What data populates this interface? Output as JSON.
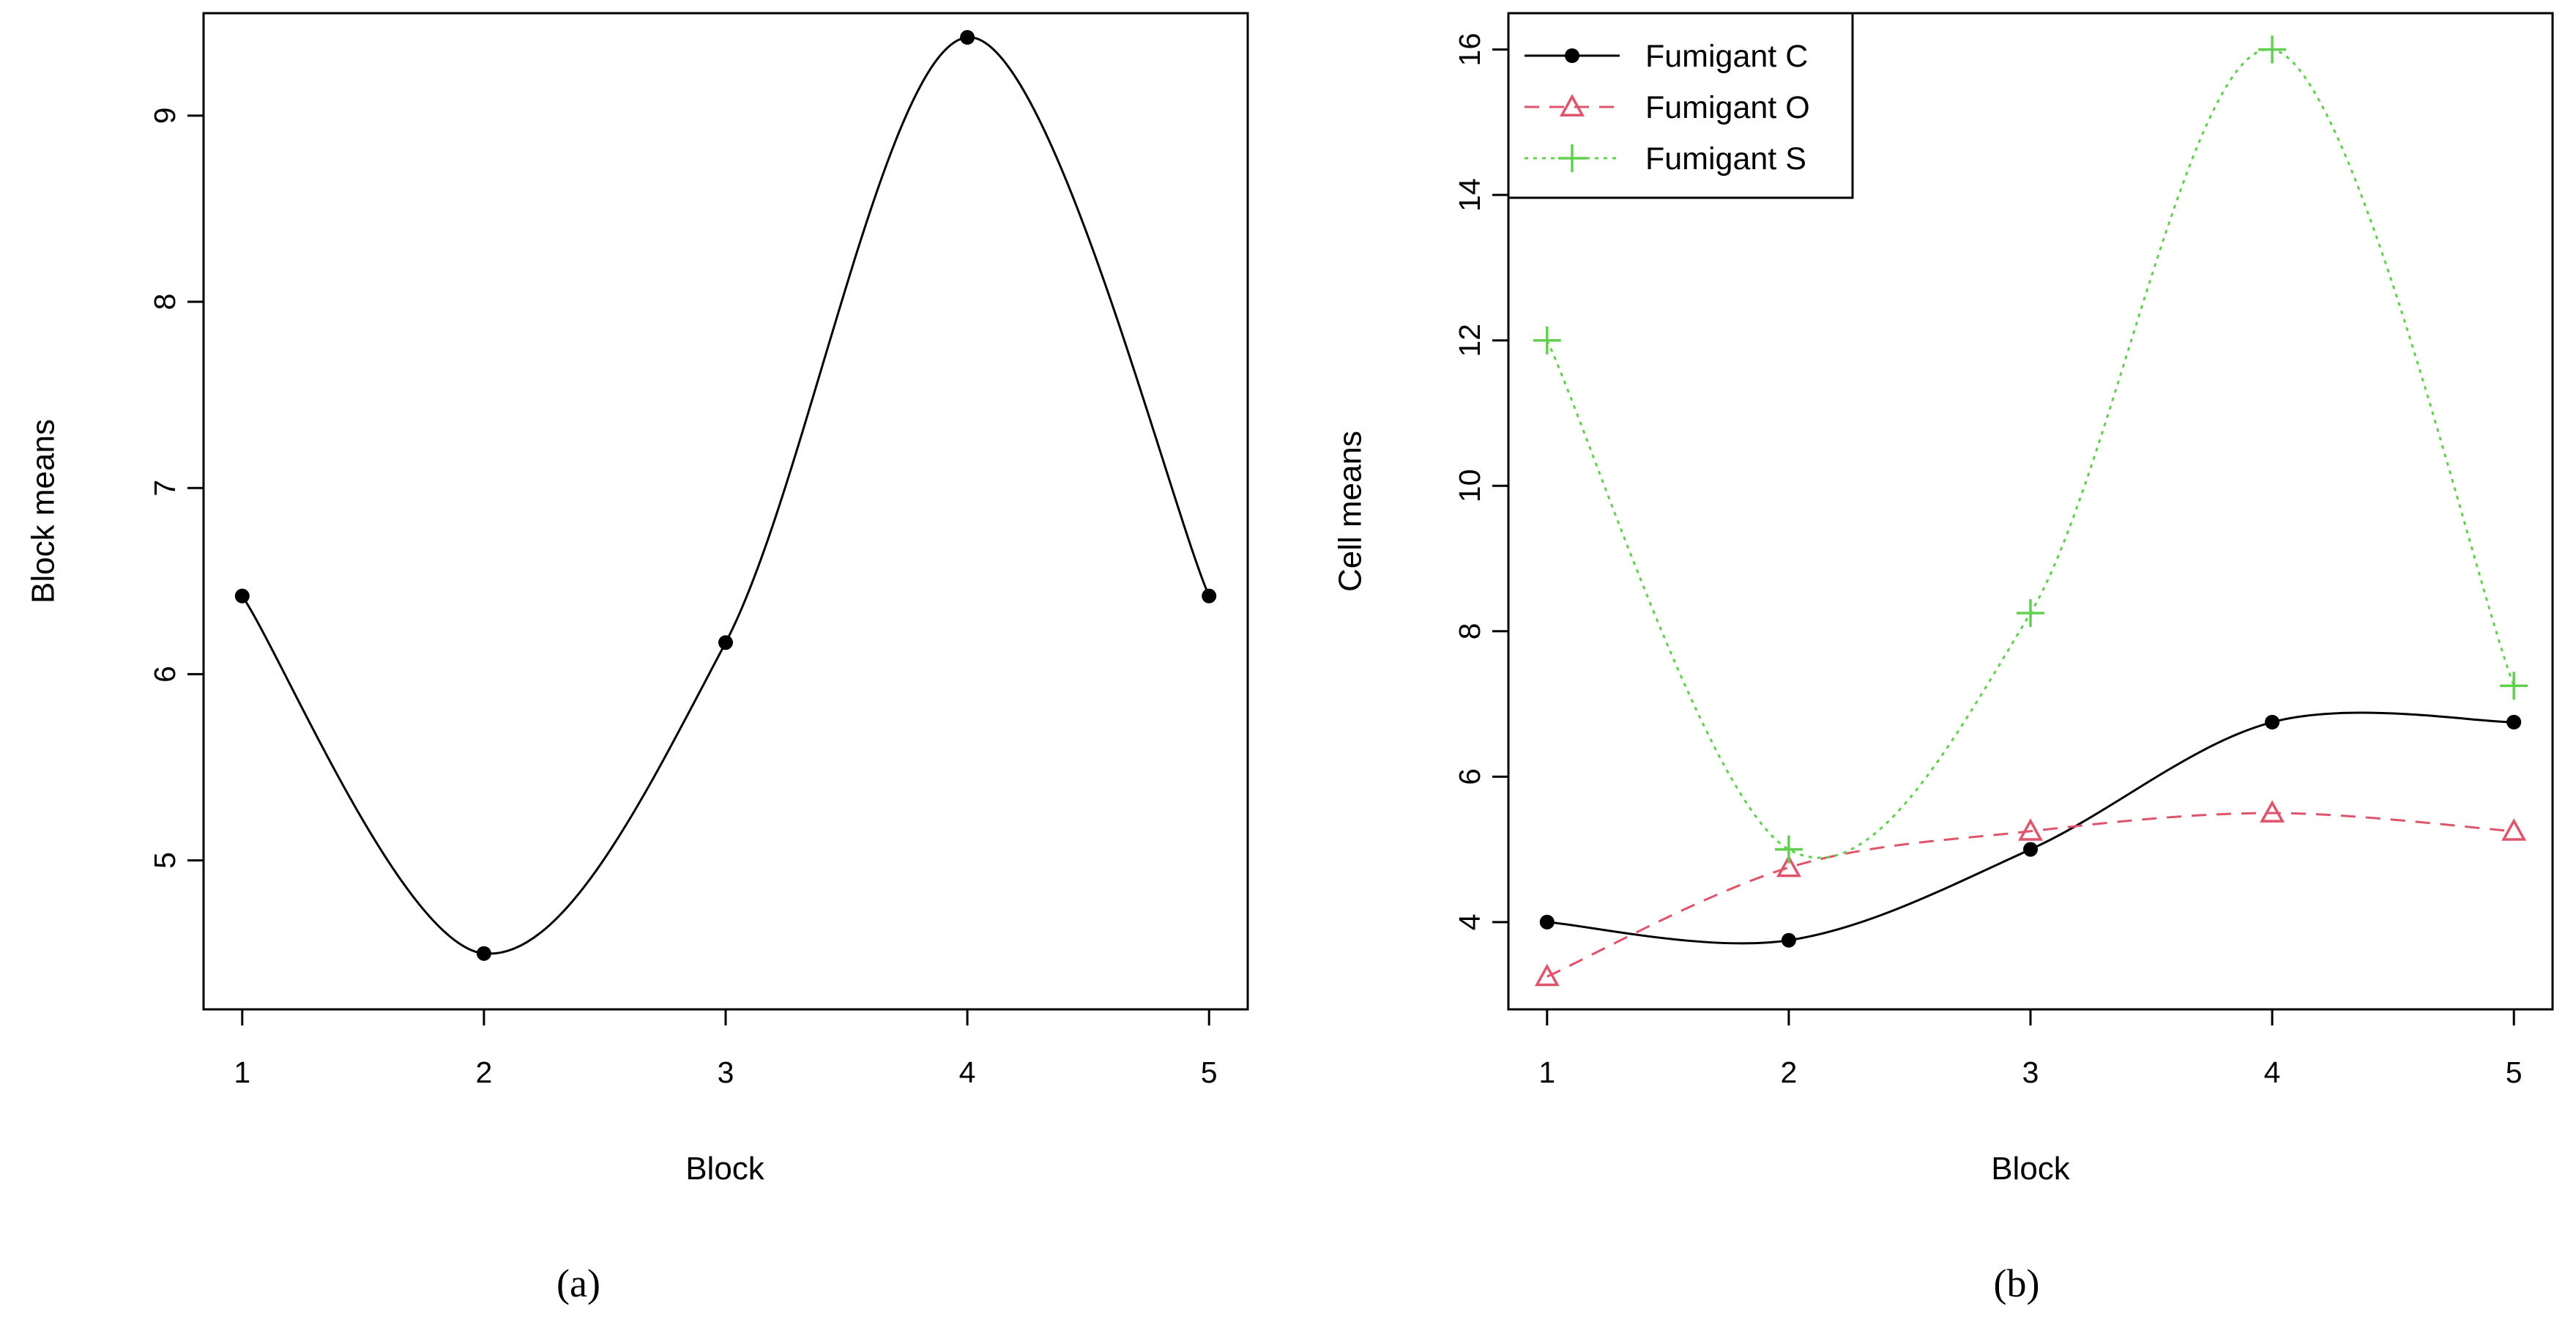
{
  "chart_data": [
    {
      "type": "line",
      "panel_label": "(a)",
      "xlabel": "Block",
      "ylabel": "Block means",
      "x": [
        1,
        2,
        3,
        4,
        5
      ],
      "xlim": [
        0.84,
        5.16
      ],
      "ylim": [
        4.2,
        9.55
      ],
      "xticks": [
        "1",
        "2",
        "3",
        "4",
        "5"
      ],
      "yticks": [
        "5",
        "6",
        "7",
        "8",
        "9"
      ],
      "grid": false,
      "series": [
        {
          "color": "#000000",
          "marker": "filled-circle",
          "line": "solid-smooth",
          "values": [
            6.42,
            4.5,
            6.17,
            9.42,
            6.42
          ]
        }
      ]
    },
    {
      "type": "line",
      "panel_label": "(b)",
      "xlabel": "Block",
      "ylabel": "Cell means",
      "x": [
        1,
        2,
        3,
        4,
        5
      ],
      "xlim": [
        0.84,
        5.16
      ],
      "ylim": [
        2.8,
        16.5
      ],
      "xticks": [
        "1",
        "2",
        "3",
        "4",
        "5"
      ],
      "yticks": [
        "4",
        "6",
        "8",
        "10",
        "12",
        "14",
        "16"
      ],
      "grid": false,
      "legend_position": "top-left",
      "series": [
        {
          "name": "Fumigant C",
          "color": "#000000",
          "marker": "filled-circle",
          "line": "solid",
          "values": [
            4.0,
            3.75,
            5.0,
            6.75,
            6.75
          ]
        },
        {
          "name": "Fumigant O",
          "color": "#DF536B",
          "marker": "open-triangle",
          "line": "dashed",
          "values": [
            3.25,
            4.75,
            5.25,
            5.5,
            5.25
          ]
        },
        {
          "name": "Fumigant S",
          "color": "#61D04F",
          "marker": "plus",
          "line": "dotted",
          "values": [
            12.0,
            5.0,
            8.25,
            16.0,
            7.25
          ]
        }
      ]
    }
  ]
}
